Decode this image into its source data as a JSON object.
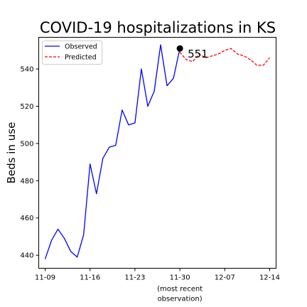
{
  "chart_data": {
    "type": "line",
    "title": "COVID-19 hospitalizations in KS",
    "ylabel": "Beds in use",
    "xlabel": "",
    "ylim": [
      433,
      557
    ],
    "xlim": [
      "2020-11-08",
      "2020-12-15"
    ],
    "x_ticks": [
      {
        "date": "2020-11-09",
        "label": "11-09"
      },
      {
        "date": "2020-11-16",
        "label": "11-16"
      },
      {
        "date": "2020-11-23",
        "label": "11-23"
      },
      {
        "date": "2020-11-30",
        "label": "11-30"
      },
      {
        "date": "2020-12-07",
        "label": "12-07"
      },
      {
        "date": "2020-12-14",
        "label": "12-14"
      }
    ],
    "x_tick_sublabel": {
      "tick": "11-30",
      "lines": [
        "(most recent",
        "observation)"
      ]
    },
    "y_ticks": [
      440,
      460,
      480,
      500,
      520,
      540
    ],
    "grid": false,
    "legend_position": "upper-left",
    "series": [
      {
        "name": "Observed",
        "color": "#0000ff",
        "style": "solid",
        "x": [
          "2020-11-09",
          "2020-11-10",
          "2020-11-11",
          "2020-11-12",
          "2020-11-13",
          "2020-11-14",
          "2020-11-15",
          "2020-11-16",
          "2020-11-17",
          "2020-11-18",
          "2020-11-19",
          "2020-11-20",
          "2020-11-21",
          "2020-11-22",
          "2020-11-23",
          "2020-11-24",
          "2020-11-25",
          "2020-11-26",
          "2020-11-27",
          "2020-11-28",
          "2020-11-29",
          "2020-11-30"
        ],
        "y": [
          438,
          448,
          454,
          449,
          442,
          439,
          451,
          489,
          473,
          492,
          498,
          499,
          518,
          510,
          511,
          540,
          520,
          528,
          553,
          531,
          535,
          551
        ]
      },
      {
        "name": "Predicted",
        "color": "#ff0000",
        "style": "dashed",
        "x": [
          "2020-11-30",
          "2020-12-01",
          "2020-12-02",
          "2020-12-03",
          "2020-12-04",
          "2020-12-05",
          "2020-12-06",
          "2020-12-07",
          "2020-12-08",
          "2020-12-09",
          "2020-12-10",
          "2020-12-11",
          "2020-12-12",
          "2020-12-13",
          "2020-12-14"
        ],
        "y": [
          549,
          545,
          544,
          548,
          546,
          547,
          548,
          550,
          551,
          548,
          547,
          545,
          542,
          542,
          546
        ]
      }
    ],
    "annotation": {
      "x": "2020-11-30",
      "y": 551,
      "label": "551",
      "marker_color": "#000000"
    }
  }
}
